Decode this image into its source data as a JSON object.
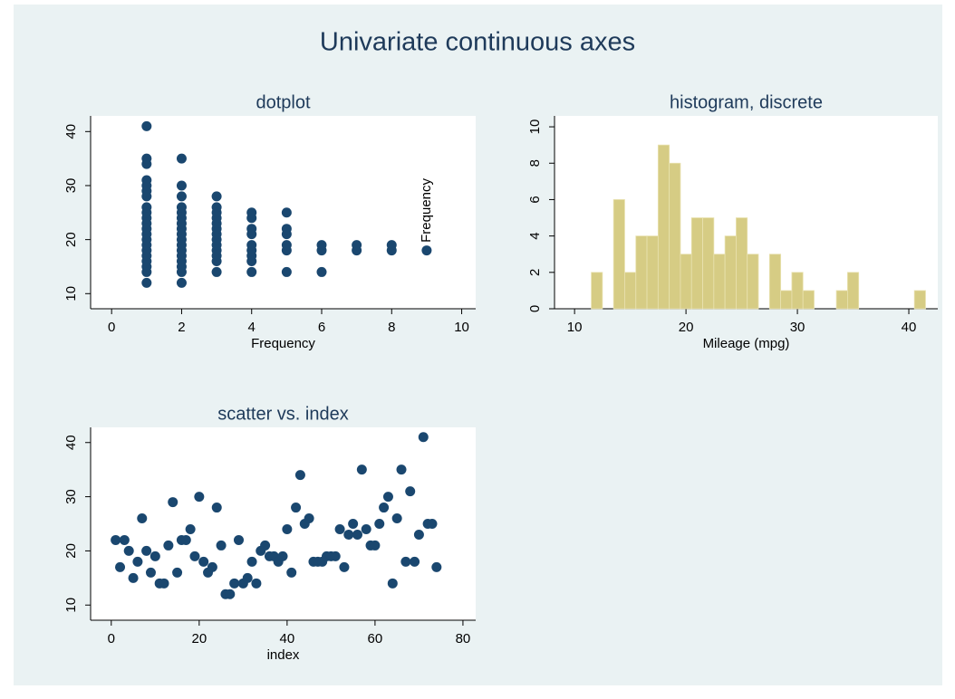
{
  "title": "Univariate continuous axes",
  "chart_data": [
    {
      "type": "scatter",
      "title": "dotplot",
      "xlabel": "Frequency",
      "annotations": [
        "Frequency"
      ],
      "color": "#1a476f",
      "x": [
        1,
        2,
        1,
        2,
        3,
        4,
        5,
        6,
        1,
        2,
        1,
        2,
        3,
        4,
        1,
        2,
        3,
        4,
        1,
        2,
        3,
        4,
        5,
        6,
        7,
        8,
        9,
        1,
        2,
        3,
        4,
        5,
        6,
        7,
        8,
        1,
        2,
        3,
        1,
        2,
        3,
        4,
        5,
        1,
        2,
        3,
        4,
        5,
        1,
        2,
        3,
        1,
        2,
        3,
        4,
        1,
        2,
        3,
        4,
        5,
        1,
        2,
        3,
        1,
        2,
        3,
        1,
        1,
        2,
        1,
        1,
        1,
        2,
        1
      ],
      "values": [
        12,
        12,
        14,
        14,
        14,
        14,
        14,
        14,
        15,
        15,
        16,
        16,
        16,
        16,
        17,
        17,
        17,
        17,
        18,
        18,
        18,
        18,
        18,
        18,
        18,
        18,
        18,
        19,
        19,
        19,
        19,
        19,
        19,
        19,
        19,
        20,
        20,
        20,
        21,
        21,
        21,
        21,
        21,
        22,
        22,
        22,
        22,
        22,
        23,
        23,
        23,
        24,
        24,
        24,
        24,
        25,
        25,
        25,
        25,
        25,
        26,
        26,
        26,
        28,
        28,
        28,
        29,
        30,
        30,
        31,
        34,
        35,
        35,
        41
      ],
      "xlim": [
        -0.6,
        10.4
      ],
      "xticks": [
        0,
        2,
        4,
        6,
        8,
        10
      ],
      "ylim": [
        7.2,
        42.9
      ],
      "yticks": [
        10,
        20,
        30,
        40
      ]
    },
    {
      "type": "histogram",
      "title": "histogram, discrete",
      "xlabel": "Mileage (mpg)",
      "color": "#d6cc84",
      "bins": [
        11.5,
        12.5,
        13.5,
        14.5,
        15.5,
        16.5,
        17.5,
        18.5,
        19.5,
        20.5,
        21.5,
        22.5,
        23.5,
        24.5,
        25.5,
        26.5,
        27.5,
        28.5,
        29.5,
        30.5,
        31.5,
        32.5,
        33.5,
        34.5,
        35.5,
        36.5,
        37.5,
        38.5,
        39.5,
        40.5,
        41.5
      ],
      "values": [
        2,
        0,
        6,
        2,
        4,
        4,
        9,
        8,
        3,
        5,
        5,
        3,
        4,
        5,
        3,
        0,
        3,
        1,
        2,
        1,
        0,
        0,
        1,
        2,
        0,
        0,
        0,
        0,
        0,
        1
      ],
      "xlim": [
        8.2,
        42.6
      ],
      "xticks": [
        10,
        20,
        30,
        40
      ],
      "ylim": [
        0,
        10.6
      ],
      "yticks": [
        0,
        2,
        4,
        6,
        8,
        10
      ]
    },
    {
      "type": "scatter",
      "title": "scatter vs. index",
      "xlabel": "index",
      "color": "#1a476f",
      "x": [
        1,
        2,
        3,
        4,
        5,
        6,
        7,
        8,
        9,
        10,
        11,
        12,
        13,
        14,
        15,
        16,
        17,
        18,
        19,
        20,
        21,
        22,
        23,
        24,
        25,
        26,
        27,
        28,
        29,
        30,
        31,
        32,
        33,
        34,
        35,
        36,
        37,
        38,
        39,
        40,
        41,
        42,
        43,
        44,
        45,
        46,
        47,
        48,
        49,
        50,
        51,
        52,
        53,
        54,
        55,
        56,
        57,
        58,
        59,
        60,
        61,
        62,
        63,
        64,
        65,
        66,
        67,
        68,
        69,
        70,
        71,
        72,
        73,
        74
      ],
      "values": [
        22,
        17,
        22,
        20,
        15,
        18,
        26,
        20,
        16,
        19,
        14,
        14,
        21,
        29,
        16,
        22,
        22,
        24,
        19,
        30,
        18,
        16,
        17,
        28,
        21,
        12,
        12,
        14,
        22,
        14,
        15,
        18,
        14,
        20,
        21,
        19,
        19,
        18,
        19,
        24,
        16,
        28,
        34,
        25,
        26,
        18,
        18,
        18,
        19,
        19,
        19,
        24,
        17,
        23,
        25,
        23,
        35,
        24,
        21,
        21,
        25,
        28,
        30,
        14,
        26,
        35,
        18,
        31,
        18,
        23,
        41,
        25,
        25,
        17
      ],
      "xlim": [
        -4.7,
        82.9
      ],
      "xticks": [
        0,
        20,
        40,
        60,
        80
      ],
      "ylim": [
        7.2,
        42.8
      ],
      "yticks": [
        10,
        20,
        30,
        40
      ]
    }
  ]
}
